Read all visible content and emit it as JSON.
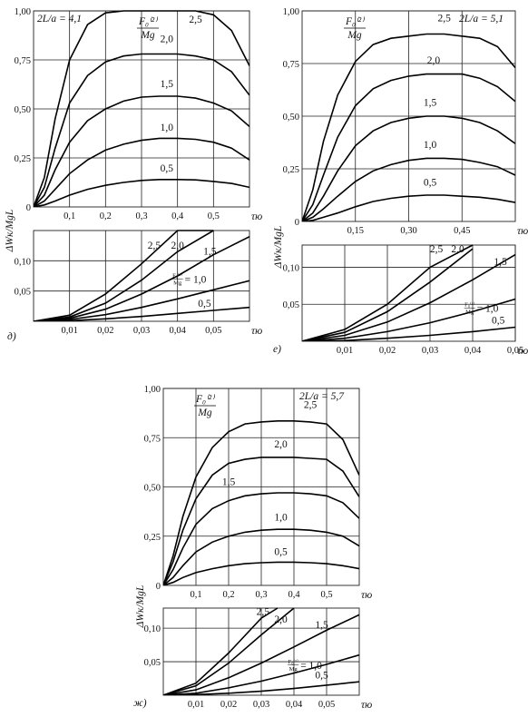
{
  "shared": {
    "ylabel": "ΔWк/MgL",
    "xlabel": "τю",
    "frac_num": "F₀⁽²⁾",
    "frac_den": "Mg",
    "frac_num_small": "F₀⁽¹⁾",
    "frac_den_small": "Mg"
  },
  "chart_data": [
    {
      "id": "d-top",
      "type": "line",
      "panel": "д)",
      "param_label": "2L/a = 4,1",
      "xlim": [
        0,
        0.6
      ],
      "ylim": [
        0,
        1.0
      ],
      "xticks": [
        0.1,
        0.2,
        0.3,
        0.4,
        0.5
      ],
      "xtick_labels": [
        "0,1",
        "0,2",
        "0,3",
        "0,4",
        "0,5"
      ],
      "yticks": [
        0,
        0.25,
        0.5,
        0.75,
        1.0
      ],
      "ytick_labels": [
        "0",
        "0,25",
        "0,50",
        "0,75",
        "1,00"
      ],
      "series": [
        {
          "name": "2,5",
          "x": [
            0,
            0.03,
            0.06,
            0.1,
            0.15,
            0.2,
            0.25,
            0.3,
            0.35,
            0.4,
            0.45,
            0.5,
            0.55,
            0.6
          ],
          "y": [
            0,
            0.15,
            0.45,
            0.75,
            0.93,
            0.99,
            1.0,
            1.0,
            1.0,
            1.0,
            1.0,
            0.98,
            0.9,
            0.72
          ]
        },
        {
          "name": "2,0",
          "x": [
            0,
            0.03,
            0.06,
            0.1,
            0.15,
            0.2,
            0.25,
            0.3,
            0.35,
            0.4,
            0.45,
            0.5,
            0.55,
            0.6
          ],
          "y": [
            0,
            0.1,
            0.3,
            0.53,
            0.67,
            0.74,
            0.77,
            0.78,
            0.78,
            0.78,
            0.77,
            0.75,
            0.69,
            0.57
          ]
        },
        {
          "name": "1,5",
          "x": [
            0,
            0.03,
            0.06,
            0.1,
            0.15,
            0.2,
            0.25,
            0.3,
            0.35,
            0.4,
            0.45,
            0.5,
            0.55,
            0.6
          ],
          "y": [
            0,
            0.06,
            0.19,
            0.33,
            0.44,
            0.5,
            0.54,
            0.56,
            0.565,
            0.565,
            0.555,
            0.53,
            0.49,
            0.41
          ]
        },
        {
          "name": "1,0",
          "x": [
            0,
            0.03,
            0.06,
            0.1,
            0.15,
            0.2,
            0.25,
            0.3,
            0.35,
            0.4,
            0.45,
            0.5,
            0.55,
            0.6
          ],
          "y": [
            0,
            0.03,
            0.09,
            0.17,
            0.24,
            0.29,
            0.32,
            0.34,
            0.35,
            0.35,
            0.345,
            0.33,
            0.3,
            0.24
          ]
        },
        {
          "name": "0,5",
          "x": [
            0,
            0.03,
            0.06,
            0.1,
            0.15,
            0.2,
            0.25,
            0.3,
            0.35,
            0.4,
            0.45,
            0.5,
            0.55,
            0.6
          ],
          "y": [
            0,
            0.01,
            0.03,
            0.06,
            0.09,
            0.11,
            0.125,
            0.135,
            0.14,
            0.14,
            0.138,
            0.13,
            0.12,
            0.1
          ]
        }
      ]
    },
    {
      "id": "d-bottom",
      "type": "line",
      "panel": "д)",
      "xlim": [
        0,
        0.06
      ],
      "ylim": [
        0,
        0.15
      ],
      "xticks": [
        0.01,
        0.02,
        0.03,
        0.04,
        0.05
      ],
      "xtick_labels": [
        "0,01",
        "0,02",
        "0,03",
        "0,04",
        "0,05"
      ],
      "yticks": [
        0.05,
        0.1
      ],
      "ytick_labels": [
        "0,05",
        "0,10"
      ],
      "series": [
        {
          "name": "2,5",
          "x": [
            0,
            0.01,
            0.02,
            0.03,
            0.04,
            0.05
          ],
          "y": [
            0,
            0.01,
            0.045,
            0.095,
            0.15,
            0.15
          ]
        },
        {
          "name": "2,0",
          "x": [
            0,
            0.01,
            0.02,
            0.03,
            0.04,
            0.05
          ],
          "y": [
            0,
            0.007,
            0.03,
            0.068,
            0.115,
            0.15
          ]
        },
        {
          "name": "1,5",
          "x": [
            0,
            0.01,
            0.02,
            0.03,
            0.04,
            0.05,
            0.06
          ],
          "y": [
            0,
            0.005,
            0.02,
            0.045,
            0.075,
            0.11,
            0.14
          ]
        },
        {
          "name": "1,0",
          "x": [
            0,
            0.01,
            0.02,
            0.03,
            0.04,
            0.05,
            0.06
          ],
          "y": [
            0,
            0.003,
            0.011,
            0.023,
            0.037,
            0.052,
            0.067
          ]
        },
        {
          "name": "0,5",
          "x": [
            0,
            0.01,
            0.02,
            0.03,
            0.04,
            0.05,
            0.06
          ],
          "y": [
            0,
            0.001,
            0.004,
            0.008,
            0.013,
            0.018,
            0.023
          ]
        }
      ]
    },
    {
      "id": "e-top",
      "type": "line",
      "panel": "е)",
      "param_label": "2L/a = 5,1",
      "xlim": [
        0,
        0.6
      ],
      "ylim": [
        0,
        1.0
      ],
      "xticks": [
        0.15,
        0.3,
        0.45
      ],
      "xtick_labels": [
        "0,15",
        "0,30",
        "0,45"
      ],
      "yticks": [
        0,
        0.25,
        0.5,
        0.75,
        1.0
      ],
      "ytick_labels": [
        "0",
        "0,25",
        "0,50",
        "0,75",
        "1,00"
      ],
      "series": [
        {
          "name": "2,5",
          "x": [
            0,
            0.03,
            0.06,
            0.1,
            0.15,
            0.2,
            0.25,
            0.3,
            0.35,
            0.4,
            0.45,
            0.5,
            0.55,
            0.6
          ],
          "y": [
            0,
            0.15,
            0.38,
            0.6,
            0.76,
            0.84,
            0.87,
            0.88,
            0.89,
            0.89,
            0.88,
            0.87,
            0.83,
            0.73
          ]
        },
        {
          "name": "2,0",
          "x": [
            0,
            0.03,
            0.06,
            0.1,
            0.15,
            0.2,
            0.25,
            0.3,
            0.35,
            0.4,
            0.45,
            0.5,
            0.55,
            0.6
          ],
          "y": [
            0,
            0.08,
            0.22,
            0.4,
            0.55,
            0.63,
            0.67,
            0.69,
            0.7,
            0.7,
            0.7,
            0.68,
            0.64,
            0.57
          ]
        },
        {
          "name": "1,5",
          "x": [
            0,
            0.03,
            0.06,
            0.1,
            0.15,
            0.2,
            0.25,
            0.3,
            0.35,
            0.4,
            0.45,
            0.5,
            0.55,
            0.6
          ],
          "y": [
            0,
            0.04,
            0.12,
            0.24,
            0.36,
            0.43,
            0.47,
            0.49,
            0.5,
            0.5,
            0.49,
            0.47,
            0.43,
            0.37
          ]
        },
        {
          "name": "1,0",
          "x": [
            0,
            0.03,
            0.06,
            0.1,
            0.15,
            0.2,
            0.25,
            0.3,
            0.35,
            0.4,
            0.45,
            0.5,
            0.55,
            0.6
          ],
          "y": [
            0,
            0.02,
            0.06,
            0.12,
            0.19,
            0.24,
            0.27,
            0.29,
            0.3,
            0.3,
            0.295,
            0.28,
            0.26,
            0.22
          ]
        },
        {
          "name": "0,5",
          "x": [
            0,
            0.03,
            0.06,
            0.1,
            0.15,
            0.2,
            0.25,
            0.3,
            0.35,
            0.4,
            0.45,
            0.5,
            0.55,
            0.6
          ],
          "y": [
            0,
            0.005,
            0.02,
            0.04,
            0.07,
            0.095,
            0.11,
            0.12,
            0.125,
            0.125,
            0.12,
            0.115,
            0.105,
            0.09
          ]
        }
      ]
    },
    {
      "id": "e-bottom",
      "type": "line",
      "panel": "е)",
      "xlim": [
        0,
        0.05
      ],
      "ylim": [
        0,
        0.13
      ],
      "xticks": [
        0.01,
        0.02,
        0.03,
        0.04,
        0.05
      ],
      "xtick_labels": [
        "0,01",
        "0,02",
        "0,03",
        "0,04",
        "0,05"
      ],
      "yticks": [
        0.05,
        0.1
      ],
      "ytick_labels": [
        "0,05",
        "0,10"
      ],
      "series": [
        {
          "name": "2,5",
          "x": [
            0,
            0.01,
            0.02,
            0.03,
            0.04
          ],
          "y": [
            0,
            0.016,
            0.05,
            0.1,
            0.13
          ]
        },
        {
          "name": "2,0",
          "x": [
            0,
            0.01,
            0.02,
            0.03,
            0.04
          ],
          "y": [
            0,
            0.012,
            0.04,
            0.08,
            0.125
          ]
        },
        {
          "name": "1,5",
          "x": [
            0,
            0.01,
            0.02,
            0.03,
            0.04,
            0.05
          ],
          "y": [
            0,
            0.008,
            0.026,
            0.052,
            0.083,
            0.117
          ]
        },
        {
          "name": "1,0",
          "x": [
            0,
            0.01,
            0.02,
            0.03,
            0.04,
            0.05
          ],
          "y": [
            0,
            0.004,
            0.013,
            0.025,
            0.04,
            0.057
          ]
        },
        {
          "name": "0,5",
          "x": [
            0,
            0.01,
            0.02,
            0.03,
            0.04,
            0.05
          ],
          "y": [
            0,
            0.001,
            0.004,
            0.008,
            0.013,
            0.019
          ]
        }
      ]
    },
    {
      "id": "zh-top",
      "type": "line",
      "panel": "ж)",
      "param_label": "2L/a = 5,7",
      "xlim": [
        0,
        0.6
      ],
      "ylim": [
        0,
        1.0
      ],
      "xticks": [
        0.1,
        0.2,
        0.3,
        0.4,
        0.5
      ],
      "xtick_labels": [
        "0,1",
        "0,2",
        "0,3",
        "0,4",
        "0,5"
      ],
      "yticks": [
        0,
        0.25,
        0.5,
        0.75,
        1.0
      ],
      "ytick_labels": [
        "0",
        "0,25",
        "0,50",
        "0,75",
        "1,00"
      ],
      "series": [
        {
          "name": "2,5",
          "x": [
            0,
            0.03,
            0.06,
            0.1,
            0.15,
            0.2,
            0.25,
            0.3,
            0.35,
            0.4,
            0.45,
            0.5,
            0.55,
            0.6
          ],
          "y": [
            0,
            0.15,
            0.35,
            0.55,
            0.7,
            0.78,
            0.82,
            0.83,
            0.835,
            0.835,
            0.83,
            0.82,
            0.74,
            0.56
          ]
        },
        {
          "name": "2,0",
          "x": [
            0,
            0.03,
            0.06,
            0.1,
            0.15,
            0.2,
            0.25,
            0.3,
            0.35,
            0.4,
            0.45,
            0.5,
            0.55,
            0.6
          ],
          "y": [
            0,
            0.12,
            0.28,
            0.44,
            0.56,
            0.62,
            0.64,
            0.65,
            0.65,
            0.65,
            0.645,
            0.64,
            0.58,
            0.45
          ]
        },
        {
          "name": "1,5",
          "x": [
            0,
            0.03,
            0.06,
            0.1,
            0.15,
            0.2,
            0.25,
            0.3,
            0.35,
            0.4,
            0.45,
            0.5,
            0.55,
            0.6
          ],
          "y": [
            0,
            0.08,
            0.19,
            0.31,
            0.39,
            0.43,
            0.455,
            0.465,
            0.47,
            0.47,
            0.465,
            0.455,
            0.42,
            0.34
          ]
        },
        {
          "name": "1,0",
          "x": [
            0,
            0.03,
            0.06,
            0.1,
            0.15,
            0.2,
            0.25,
            0.3,
            0.35,
            0.4,
            0.45,
            0.5,
            0.55,
            0.6
          ],
          "y": [
            0,
            0.04,
            0.1,
            0.17,
            0.22,
            0.25,
            0.27,
            0.28,
            0.285,
            0.285,
            0.28,
            0.27,
            0.25,
            0.2
          ]
        },
        {
          "name": "0,5",
          "x": [
            0,
            0.03,
            0.06,
            0.1,
            0.15,
            0.2,
            0.25,
            0.3,
            0.35,
            0.4,
            0.45,
            0.5,
            0.55,
            0.6
          ],
          "y": [
            0,
            0.015,
            0.04,
            0.065,
            0.085,
            0.1,
            0.11,
            0.115,
            0.118,
            0.118,
            0.115,
            0.11,
            0.1,
            0.085
          ]
        }
      ]
    },
    {
      "id": "zh-bottom",
      "type": "line",
      "panel": "ж)",
      "xlim": [
        0,
        0.06
      ],
      "ylim": [
        0,
        0.13
      ],
      "xticks": [
        0.01,
        0.02,
        0.03,
        0.04,
        0.05
      ],
      "xtick_labels": [
        "0,01",
        "0,02",
        "0,03",
        "0,04",
        "0,05"
      ],
      "yticks": [
        0.05,
        0.1
      ],
      "ytick_labels": [
        "0,05",
        "0,10"
      ],
      "series": [
        {
          "name": "2,5",
          "x": [
            0,
            0.01,
            0.02,
            0.03,
            0.035
          ],
          "y": [
            0,
            0.018,
            0.063,
            0.115,
            0.13
          ]
        },
        {
          "name": "2,0",
          "x": [
            0,
            0.01,
            0.02,
            0.03,
            0.04
          ],
          "y": [
            0,
            0.014,
            0.048,
            0.09,
            0.13
          ]
        },
        {
          "name": "1,5",
          "x": [
            0,
            0.01,
            0.02,
            0.03,
            0.04,
            0.05,
            0.06
          ],
          "y": [
            0,
            0.008,
            0.026,
            0.048,
            0.072,
            0.097,
            0.12
          ]
        },
        {
          "name": "1,0",
          "x": [
            0,
            0.01,
            0.02,
            0.03,
            0.04,
            0.05,
            0.06
          ],
          "y": [
            0,
            0.003,
            0.011,
            0.021,
            0.033,
            0.046,
            0.06
          ]
        },
        {
          "name": "0,5",
          "x": [
            0,
            0.01,
            0.02,
            0.03,
            0.04,
            0.05,
            0.06
          ],
          "y": [
            0,
            0.001,
            0.003,
            0.006,
            0.01,
            0.015,
            0.02
          ]
        }
      ]
    }
  ]
}
